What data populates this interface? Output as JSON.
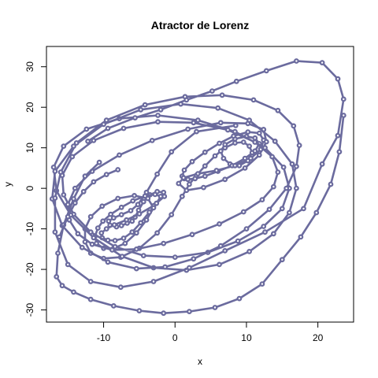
{
  "chart_data": {
    "type": "line",
    "title": "Atractor de Lorenz",
    "xlabel": "x",
    "ylabel": "y",
    "xlim": [
      -18,
      25
    ],
    "ylim": [
      -33,
      35
    ],
    "x_ticks": [
      -10,
      0,
      10,
      20
    ],
    "y_ticks": [
      -30,
      -20,
      -10,
      0,
      10,
      20,
      30
    ],
    "grid": false,
    "color": "#6b6b9e",
    "markers": "open-circle",
    "series": [
      {
        "x": [
          8.5,
          3.0,
          -0.5,
          -2.5,
          -4.0,
          -5.2,
          -6.2,
          -7.5,
          -8.6,
          -9.3,
          -9.1,
          -8.2,
          -7.5,
          -6.7,
          -6.0,
          -5.6,
          -5.1,
          -4.4,
          -3.5,
          -2.5,
          -1.6,
          -1.5
        ],
        "y": [
          15.5,
          14.0,
          9.0,
          3.5,
          -1.0,
          -4.0,
          -5.5,
          -6.5,
          -7.3,
          -8.1,
          -9.1,
          -9.5,
          -9.2,
          -8.6,
          -8.1,
          -7.1,
          -5.4,
          -3.3,
          -1.6,
          -0.8,
          -1.0,
          -2.0
        ]
      },
      {
        "x": [
          -1.5,
          -3.0,
          -5.0,
          -6.8,
          -8.5,
          -9.6,
          -10.3,
          -10.2,
          -9.4,
          -8.4,
          -7.2,
          -6.0,
          -4.8,
          -3.6,
          -2.6,
          -2.0,
          -2.8,
          -4.2,
          -5.9,
          -7.5,
          -9.0,
          -10.1,
          -10.8,
          -11.2,
          -11.0,
          -10.0,
          -8.6,
          -7.0,
          -5.4,
          -4.0,
          -3.0,
          -3.8,
          -5.7,
          -8.0,
          -10.2,
          -11.8,
          -12.6,
          -12.6,
          -11.8,
          -10.0,
          -7.6,
          -5.0,
          -2.5,
          -0.5,
          1.0
        ],
        "y": [
          -2.0,
          -4.3,
          -6.3,
          -7.8,
          -9.0,
          -10.0,
          -11.0,
          -12.2,
          -12.8,
          -12.9,
          -12.3,
          -10.8,
          -8.5,
          -5.9,
          -3.7,
          -2.0,
          -1.5,
          -1.9,
          -3.1,
          -4.7,
          -6.4,
          -8.1,
          -9.8,
          -11.8,
          -13.6,
          -14.8,
          -14.8,
          -13.6,
          -11.0,
          -7.8,
          -4.8,
          -2.5,
          -1.8,
          -2.5,
          -4.4,
          -7.0,
          -10.0,
          -13.2,
          -16.0,
          -17.3,
          -17.0,
          -14.8,
          -11.0,
          -6.5,
          -2.0
        ]
      },
      {
        "x": [
          1.0,
          2.0,
          3.0,
          4.2,
          5.6,
          7.0,
          8.4,
          9.6,
          10.4,
          10.8,
          10.2,
          9.0,
          7.7,
          6.8,
          6.4,
          7.0,
          8.4,
          10.0,
          11.2,
          11.8,
          11.2,
          9.8,
          8.0,
          6.0,
          4.2,
          2.8,
          1.8,
          1.3,
          1.0,
          1.3,
          2.4,
          4.2,
          6.2,
          8.2,
          10.2,
          11.8,
          12.4,
          12.0,
          10.6,
          8.4,
          5.8,
          3.2,
          1.2,
          0.5,
          1.6,
          4.0,
          7.0,
          9.8,
          11.8,
          12.8,
          12.4
        ],
        "y": [
          -2.0,
          1.0,
          3.2,
          5.5,
          8.0,
          10.0,
          11.2,
          11.4,
          10.4,
          8.8,
          6.8,
          5.6,
          6.0,
          7.4,
          9.2,
          10.8,
          12.2,
          12.8,
          12.4,
          11.0,
          9.2,
          7.4,
          5.6,
          4.2,
          3.0,
          2.4,
          2.2,
          2.4,
          3.0,
          4.5,
          6.6,
          8.9,
          11.1,
          12.9,
          13.9,
          13.6,
          11.9,
          9.6,
          7.4,
          5.6,
          4.4,
          3.6,
          2.6,
          1.2,
          -0.5,
          0.2,
          2.2,
          5.0,
          8.2,
          11.5,
          14.5
        ]
      },
      {
        "x": [
          12.4,
          10.2,
          6.4,
          1.8,
          -3.2,
          -7.8,
          -11.6,
          -14.0,
          -15.0,
          -14.8,
          -13.6,
          -11.6,
          -8.8,
          -5.4,
          -1.6,
          2.4,
          6.2,
          9.6,
          12.2,
          13.8,
          14.4,
          13.6,
          11.2,
          7.4,
          2.6,
          -2.4,
          -7.2,
          -11.4,
          -14.4,
          -15.8,
          -15.6,
          -14.2,
          -11.8,
          -8.4,
          -4.4,
          0.0,
          4.6,
          8.8,
          12.4,
          15.0,
          16.0,
          15.2,
          12.6,
          8.4,
          3.2,
          -2.4,
          -7.8,
          -12.4,
          -15.6,
          -17.0,
          -16.6,
          -14.6,
          -11.4,
          -7.4,
          -3.0,
          1.6,
          6.2,
          10.4,
          13.8,
          16.0,
          17.0,
          16.4,
          14.0
        ],
        "y": [
          14.5,
          16.0,
          16.2,
          14.6,
          11.8,
          8.2,
          4.2,
          0.0,
          -4.0,
          -7.8,
          -11.2,
          -13.8,
          -15.2,
          -15.0,
          -13.6,
          -11.4,
          -8.8,
          -5.8,
          -2.8,
          0.4,
          4.0,
          7.8,
          11.4,
          14.4,
          16.2,
          16.4,
          14.8,
          11.8,
          7.8,
          3.2,
          -1.6,
          -6.4,
          -10.8,
          -14.4,
          -16.6,
          -17.0,
          -15.8,
          -13.0,
          -9.4,
          -5.0,
          0.0,
          5.2,
          10.0,
          14.0,
          16.8,
          18.0,
          17.2,
          14.6,
          10.4,
          5.2,
          -0.6,
          -6.6,
          -12.2,
          -16.8,
          -19.6,
          -20.2,
          -18.8,
          -15.6,
          -11.2,
          -6.0,
          0.0,
          6.0,
          11.6
        ]
      },
      {
        "x": [
          14.0,
          10.4,
          6.0,
          0.8,
          -4.8,
          -10.0,
          -14.2,
          -16.8,
          -17.2,
          -15.8,
          -13.0,
          -9.4,
          -5.4,
          -1.4,
          2.6,
          6.4,
          10.0,
          13.2,
          15.6,
          17.0,
          17.4,
          16.6,
          14.4,
          11.0,
          6.6,
          1.4,
          -4.2,
          -9.6,
          -13.8,
          -16.0,
          -16.8,
          -16.8,
          -15.0,
          -11.8,
          -7.6,
          -3.0,
          2.0,
          7.0,
          12.6,
          18.0,
          20.6,
          22.8,
          23.6,
          22.8,
          20.6,
          17.0,
          12.8,
          8.6,
          5.2,
          1.6,
          -2.0,
          -5.6,
          -9.4,
          -12.2
        ],
        "y": [
          11.6,
          16.8,
          19.8,
          20.8,
          19.4,
          15.8,
          10.4,
          4.2,
          -2.6,
          -9.2,
          -14.6,
          -18.2,
          -19.8,
          -19.4,
          -17.4,
          -14.2,
          -10.0,
          -5.2,
          0.0,
          5.4,
          10.6,
          15.4,
          19.2,
          21.8,
          23.0,
          22.6,
          20.6,
          16.8,
          11.2,
          4.0,
          -2.4,
          -10.8,
          -18.8,
          -23.0,
          -24.4,
          -23.0,
          -19.6,
          -15.4,
          -10.8,
          -5.0,
          6.0,
          13.0,
          22.0,
          27.0,
          31.0,
          31.4,
          29.0,
          26.4,
          24.0,
          21.8,
          19.4,
          17.4,
          14.8,
          11.6
        ]
      },
      {
        "x": [
          23.6,
          23.0,
          21.8,
          19.8,
          17.6,
          15.0,
          12.2,
          9.0,
          5.6,
          2.0,
          -1.6,
          -5.0,
          -8.6,
          -11.8,
          -14.2,
          -15.8,
          -16.6,
          -16.4,
          -15.6,
          -14.2,
          -12.6,
          -10.6
        ],
        "y": [
          18.0,
          9.0,
          1.0,
          -6.0,
          -12.0,
          -17.6,
          -23.6,
          -27.2,
          -29.4,
          -30.4,
          -30.8,
          -30.2,
          -29.0,
          -27.4,
          -25.6,
          -24.0,
          -21.8,
          -16.0,
          -9.0,
          -2.6,
          3.0,
          6.4
        ]
      },
      {
        "x": [
          -16.2,
          -15.0,
          -14.0,
          -12.8,
          -11.4,
          -9.6,
          -8.0
        ],
        "y": [
          -12.0,
          -7.0,
          -3.6,
          -0.8,
          1.6,
          3.4,
          4.6
        ]
      }
    ]
  }
}
